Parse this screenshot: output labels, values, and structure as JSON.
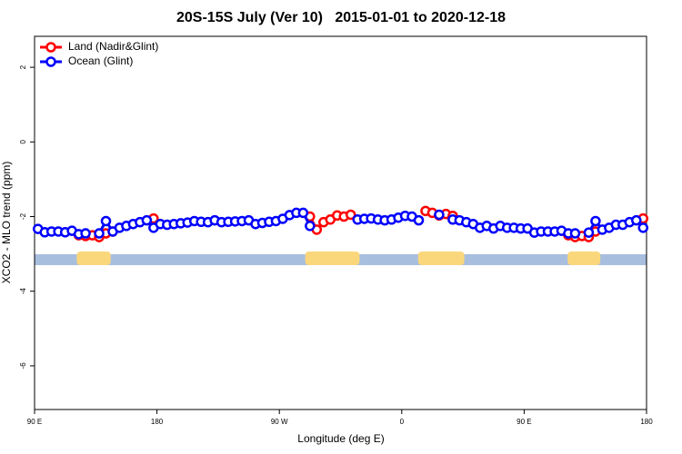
{
  "chart_data": {
    "type": "line",
    "title": "20S-15S July (Ver 10)   2015-01-01 to 2020-12-18",
    "x_label": "Longitude (deg E)",
    "y_label": "XCO2 - MLO trend (ppm)",
    "xlim": [
      90,
      540
    ],
    "ylim": [
      -7.17,
      2.83
    ],
    "xticks": [
      {
        "value": 90,
        "label": "90 E"
      },
      180,
      {
        "value": 270,
        "label": "90 W"
      },
      {
        "value": 360,
        "label": "0"
      },
      {
        "value": 450,
        "label": "90 E"
      },
      {
        "value": 540,
        "label": "180"
      }
    ],
    "yticks": [
      2,
      0,
      -2,
      -4,
      -6
    ],
    "legend": "upper left",
    "land_mask": [
      [
        121,
        146
      ],
      [
        289,
        329
      ],
      [
        372,
        406
      ],
      [
        482,
        506
      ]
    ],
    "x": [
      92.5,
      97.5,
      102.5,
      107.5,
      112.5,
      117.5,
      122.5,
      127.5,
      132.5,
      137.5,
      142.5,
      147.5,
      152.5,
      157.5,
      162.5,
      167.5,
      172.5,
      177.5,
      182.5,
      187.5,
      192.5,
      197.5,
      202.5,
      207.5,
      212.5,
      217.5,
      222.5,
      227.5,
      232.5,
      237.5,
      242.5,
      247.5,
      252.5,
      257.5,
      262.5,
      267.5,
      272.5,
      277.5,
      282.5,
      287.5,
      292.5,
      297.5,
      302.5,
      307.5,
      312.5,
      317.5,
      322.5,
      327.5,
      332.5,
      337.5,
      342.5,
      347.5,
      352.5,
      357.5,
      362.5,
      367.5,
      372.5,
      377.5,
      382.5,
      387.5,
      392.5,
      397.5,
      402.5,
      407.5,
      412.5,
      417.5,
      422.5,
      427.5,
      432.5,
      437.5,
      442.5,
      447.5,
      452.5,
      457.5,
      462.5,
      467.5,
      472.5,
      477.5,
      482.5,
      487.5,
      492.5,
      497.5,
      502.5,
      507.5,
      512.5,
      517.5,
      522.5,
      527.5,
      532.5,
      537.5
    ],
    "series": [
      {
        "name": "Land (Nadir&Glint)",
        "color": "#ff0000",
        "values": [
          null,
          null,
          null,
          null,
          null,
          null,
          -2.5,
          -2.52,
          -2.5,
          -2.55,
          -2.45,
          -2.4,
          null,
          null,
          null,
          null,
          null,
          -2.05,
          null,
          null,
          null,
          null,
          null,
          null,
          null,
          null,
          null,
          null,
          null,
          null,
          null,
          null,
          null,
          null,
          null,
          null,
          null,
          null,
          null,
          null,
          -2.0,
          -2.35,
          -2.15,
          -2.08,
          -1.97,
          -2.0,
          -1.95,
          null,
          null,
          null,
          null,
          null,
          null,
          null,
          null,
          null,
          null,
          -1.85,
          -1.9,
          -1.97,
          -1.93,
          -1.98,
          null,
          null,
          null,
          null,
          null,
          null,
          null,
          null,
          null,
          null,
          null,
          null,
          null,
          null,
          null,
          null,
          -2.5,
          -2.55,
          -2.52,
          -2.55,
          -2.4,
          null,
          null,
          null,
          null,
          null,
          null,
          -2.05
        ]
      },
      {
        "name": "Ocean (Glint)",
        "color": "#0000ff",
        "values": [
          -2.33,
          -2.42,
          -2.4,
          -2.4,
          -2.42,
          -2.38,
          -2.47,
          -2.45,
          null,
          -2.45,
          -2.12,
          -2.4,
          -2.3,
          -2.25,
          -2.2,
          -2.15,
          -2.1,
          -2.3,
          -2.2,
          -2.22,
          -2.2,
          -2.18,
          -2.16,
          -2.12,
          -2.14,
          -2.15,
          -2.1,
          -2.15,
          -2.14,
          -2.13,
          -2.12,
          -2.1,
          -2.2,
          -2.17,
          -2.14,
          -2.12,
          -2.06,
          -1.96,
          -1.9,
          -1.9,
          -2.25,
          null,
          null,
          null,
          null,
          null,
          null,
          -2.08,
          -2.06,
          -2.05,
          -2.08,
          -2.1,
          -2.08,
          -2.03,
          -1.98,
          -2.0,
          -2.1,
          null,
          null,
          -1.95,
          null,
          -2.08,
          -2.1,
          -2.15,
          -2.2,
          -2.3,
          -2.25,
          -2.32,
          -2.25,
          -2.3,
          -2.3,
          -2.32,
          -2.32,
          -2.43,
          -2.4,
          -2.4,
          -2.4,
          -2.38,
          -2.45,
          -2.45,
          null,
          -2.43,
          -2.12,
          -2.35,
          -2.3,
          -2.22,
          -2.22,
          -2.15,
          -2.1,
          -2.3
        ]
      }
    ]
  }
}
